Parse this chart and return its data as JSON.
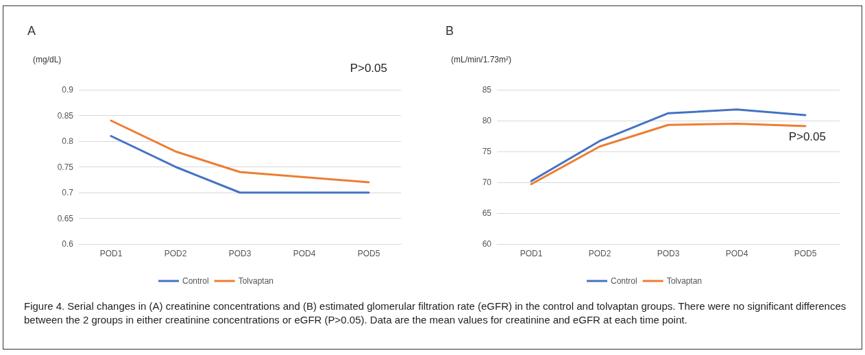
{
  "chart_data": [
    {
      "type": "line",
      "title": "A",
      "ylabel": "(mg/dL)",
      "categories": [
        "POD1",
        "POD2",
        "POD3",
        "POD4",
        "POD5"
      ],
      "series": [
        {
          "name": "Control",
          "color": "#4472c4",
          "values": [
            0.81,
            0.75,
            0.7,
            0.7,
            0.7
          ]
        },
        {
          "name": "Tolvaptan",
          "color": "#ed7d31",
          "values": [
            0.84,
            0.78,
            0.74,
            0.73,
            0.72
          ]
        }
      ],
      "ylim": [
        0.6,
        0.9
      ],
      "yticks": [
        0.6,
        0.65,
        0.7,
        0.75,
        0.8,
        0.85,
        0.9
      ],
      "grid": "y",
      "legend": "bottom",
      "marker": "none",
      "line_style": "solid",
      "annotations": [
        "P>0.05",
        "Figure 4.  Serial changes in (A) creatinine concentrations and (B) estimated glomerular filtration rate (eGFR) in the control and tolvaptan groups. There were no significant differences between the 2 groups in either creatinine concentrations or eGFR (P>0.05). Data are the mean values for creatinine and eGFR at each time point."
      ]
    },
    {
      "type": "line",
      "title": "B",
      "ylabel": "(mL/min/1.73m²)",
      "categories": [
        "POD1",
        "POD2",
        "POD3",
        "POD4",
        "POD5"
      ],
      "series": [
        {
          "name": "Control",
          "color": "#4472c4",
          "values": [
            70.2,
            76.7,
            81.2,
            81.8,
            80.9
          ]
        },
        {
          "name": "Tolvaptan",
          "color": "#ed7d31",
          "values": [
            69.7,
            75.8,
            79.3,
            79.5,
            79.1
          ]
        }
      ],
      "ylim": [
        60,
        85
      ],
      "yticks": [
        60,
        65,
        70,
        75,
        80,
        85
      ],
      "grid": "y",
      "legend": "bottom",
      "marker": "none",
      "line_style": "solid",
      "annotations": [
        "P>0.05"
      ]
    }
  ]
}
